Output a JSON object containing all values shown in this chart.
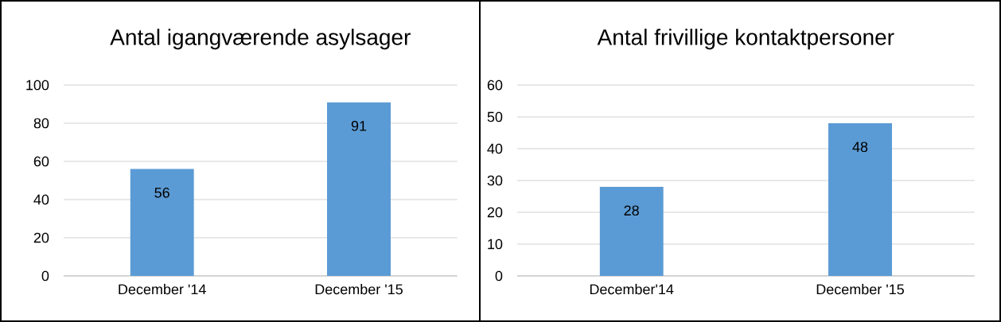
{
  "chart_data": [
    {
      "type": "bar",
      "title": "Antal igangværende asylsager",
      "categories": [
        "December '14",
        "December '15"
      ],
      "values": [
        56,
        91
      ],
      "color": "#5b9bd5",
      "ylim": [
        0,
        100
      ],
      "yticks": [
        0,
        20,
        40,
        60,
        80,
        100
      ],
      "grid": "y",
      "data_labels": true
    },
    {
      "type": "bar",
      "title": "Antal frivillige kontaktpersoner",
      "categories": [
        "December'14",
        "December '15"
      ],
      "values": [
        28,
        48
      ],
      "color": "#5b9bd5",
      "ylim": [
        0,
        60
      ],
      "yticks": [
        0,
        10,
        20,
        30,
        40,
        50,
        60
      ],
      "grid": "y",
      "data_labels": true
    }
  ]
}
